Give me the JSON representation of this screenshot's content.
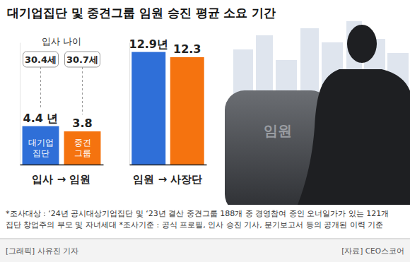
{
  "title": "대기업집단 및 중견그룹 임원 승진 평균 소요 기간",
  "image_label": "임원",
  "footnote": [
    "*조사대상 : ‘24년 공시대상기업집단 및 ‘23년 결산 중견그룹 188개 중 경영참여 중인 오너일가가 있는 121개",
    "집단 창업주의 부모 및 자녀세대 *조사기준 : 공식 프로필, 인사 승진 기사, 분기보고서 등의 공개된 이력 기준"
  ],
  "credits": [
    "[그래픽] 사유진 기자",
    "[자료] CEO스코어"
  ],
  "chart_data": [
    {
      "type": "bar",
      "xlabel": "입사 → 임원",
      "categories": [
        "대기업 집단",
        "중견 그룹"
      ],
      "values": [
        4.4,
        3.8
      ],
      "value_labels": [
        "4.4 년",
        "3.8"
      ],
      "colors": [
        "#2f6fd8",
        "#f5730f"
      ],
      "ylim": [
        0,
        14
      ],
      "tick_labels": "x",
      "data_labels": true,
      "annotations": [
        "입사 나이",
        "30.4세",
        "30.7세"
      ]
    },
    {
      "type": "bar",
      "xlabel": "임원 → 사장단",
      "categories": [
        null,
        null
      ],
      "values": [
        12.9,
        12.3
      ],
      "value_labels": [
        "12.9년",
        "12.3"
      ],
      "colors": [
        "#2f6fd8",
        "#f5730f"
      ],
      "ylim": [
        0,
        14
      ],
      "tick_labels": false,
      "data_labels": true
    }
  ]
}
